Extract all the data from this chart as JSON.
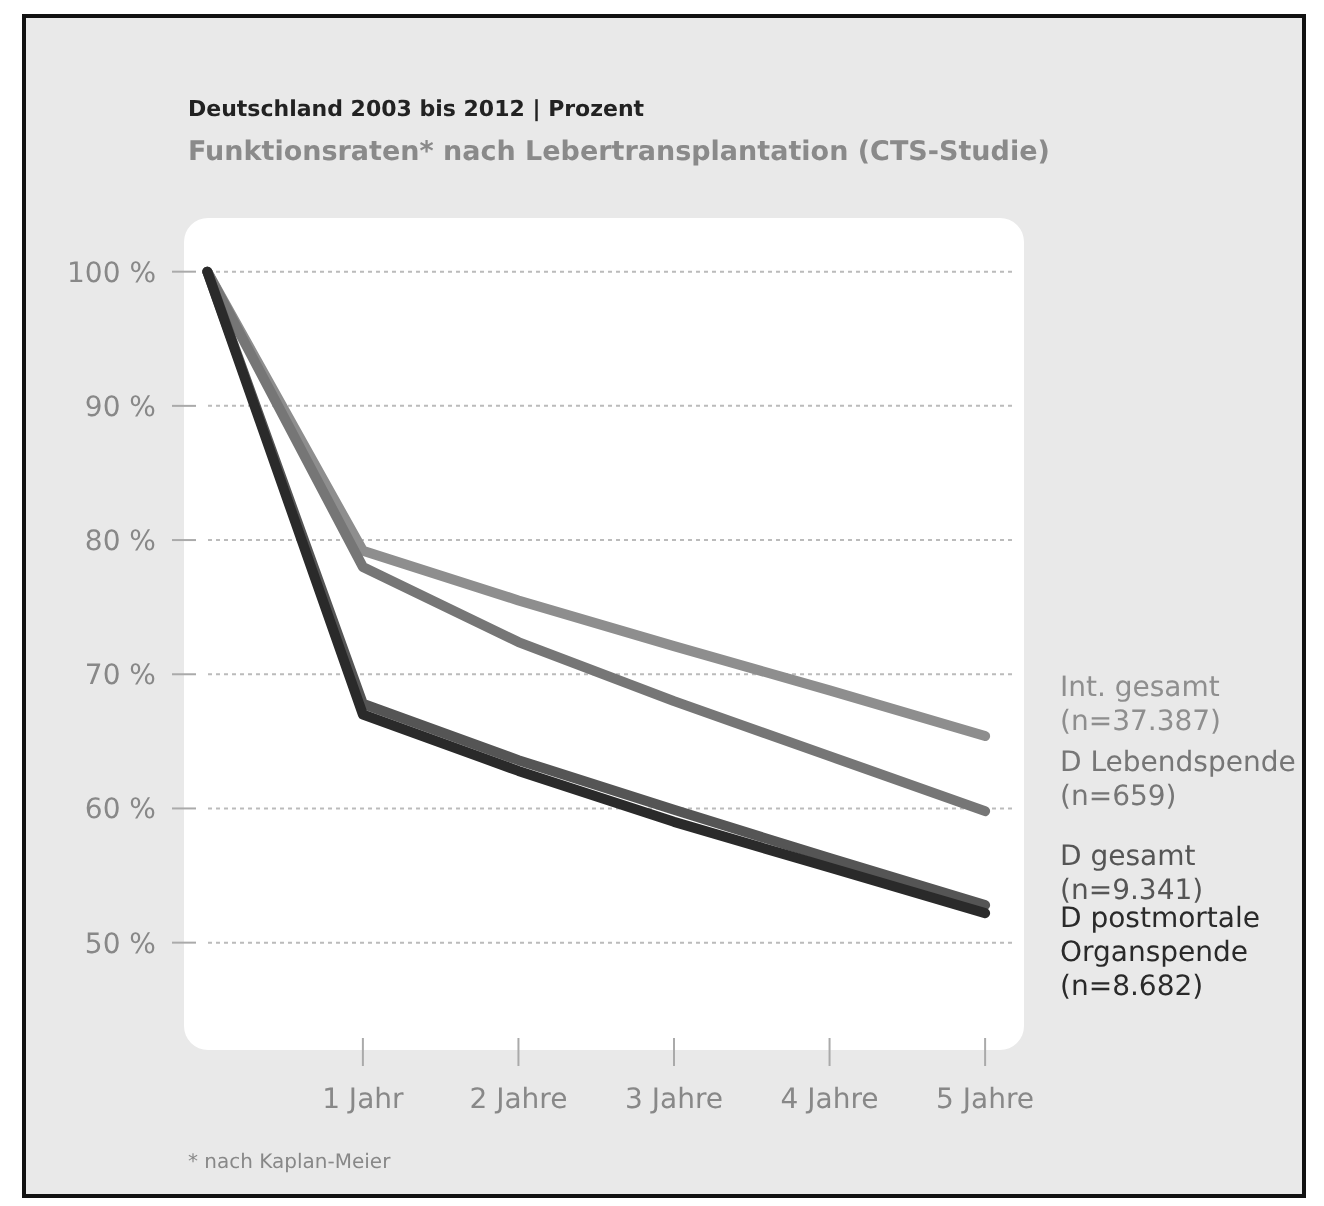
{
  "chart_data": {
    "type": "line",
    "title": "Deutschland 2003 bis 2012 | Prozent",
    "subtitle": "Funktionsraten* nach Lebertransplantation (CTS-Studie)",
    "annotations": [
      "* nach Kaplan-Meier"
    ],
    "x": [
      0,
      1,
      2,
      3,
      4,
      5
    ],
    "xlim": [
      -0.15,
      5.25
    ],
    "xticks": [
      {
        "value": 1,
        "label": "1 Jahr"
      },
      {
        "value": 2,
        "label": "2 Jahre"
      },
      {
        "value": 3,
        "label": "3 Jahre"
      },
      {
        "value": 4,
        "label": "4 Jahre"
      },
      {
        "value": 5,
        "label": "5 Jahre"
      }
    ],
    "ylim": [
      42,
      104
    ],
    "yticks": [
      {
        "value": 50,
        "label": "50 %"
      },
      {
        "value": 60,
        "label": "60 %"
      },
      {
        "value": 70,
        "label": "70 %"
      },
      {
        "value": 80,
        "label": "80 %"
      },
      {
        "value": 90,
        "label": "90 %"
      },
      {
        "value": 100,
        "label": "100 %"
      }
    ],
    "grid": "y",
    "legend": "right",
    "line_style": "solid",
    "marker": "none",
    "series": [
      {
        "name": "Int. gesamt (n=37.387)",
        "color": "#8e8e8e",
        "values": [
          100,
          79.2,
          75.5,
          72.1,
          68.8,
          65.4
        ]
      },
      {
        "name": "D Lebendspende (n=659)",
        "color": "#767676",
        "values": [
          100,
          78,
          72.4,
          68,
          63.9,
          59.8
        ]
      },
      {
        "name": "D gesamt (n=9.341)",
        "color": "#555555",
        "values": [
          100,
          67.8,
          63.6,
          59.9,
          56.3,
          52.8
        ]
      },
      {
        "name": "D postmortale Organspende (n=8.682)",
        "color": "#2a2a2a",
        "values": [
          100,
          67,
          62.8,
          59,
          55.6,
          52.2
        ]
      }
    ]
  }
}
